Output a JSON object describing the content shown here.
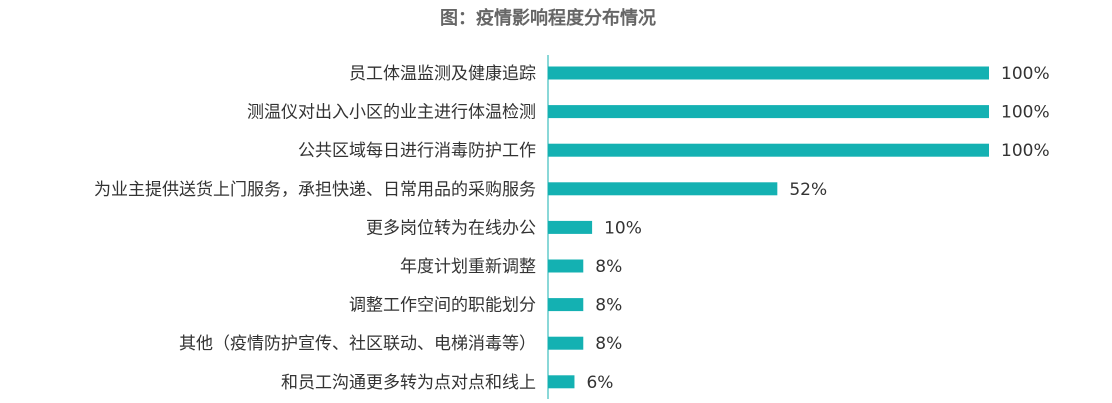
{
  "chart_data": {
    "type": "bar",
    "orientation": "horizontal",
    "title": "图：疫情影响程度分布情况",
    "categories": [
      "员工体温监测及健康追踪",
      "测温仪对出入小区的业主进行体温检测",
      "公共区域每日进行消毒防护工作",
      "为业主提供送货上门服务，承担快递、日常用品的采购服务",
      "更多岗位转为在线办公",
      "年度计划重新调整",
      "调整工作空间的职能划分",
      "其他（疫情防护宣传、社区联动、电梯消毒等）",
      "和员工沟通更多转为点对点和线上"
    ],
    "values": [
      100,
      100,
      100,
      52,
      10,
      8,
      8,
      8,
      6
    ],
    "value_labels": [
      "100%",
      "100%",
      "100%",
      "52%",
      "10%",
      "8%",
      "8%",
      "8%",
      "6%"
    ],
    "xlim": [
      0,
      100
    ],
    "grid": false,
    "legend": "none",
    "colors": {
      "bar": "#14b1b2",
      "axis": "#14b1b2",
      "title": "#666666",
      "label": "#333333"
    }
  }
}
